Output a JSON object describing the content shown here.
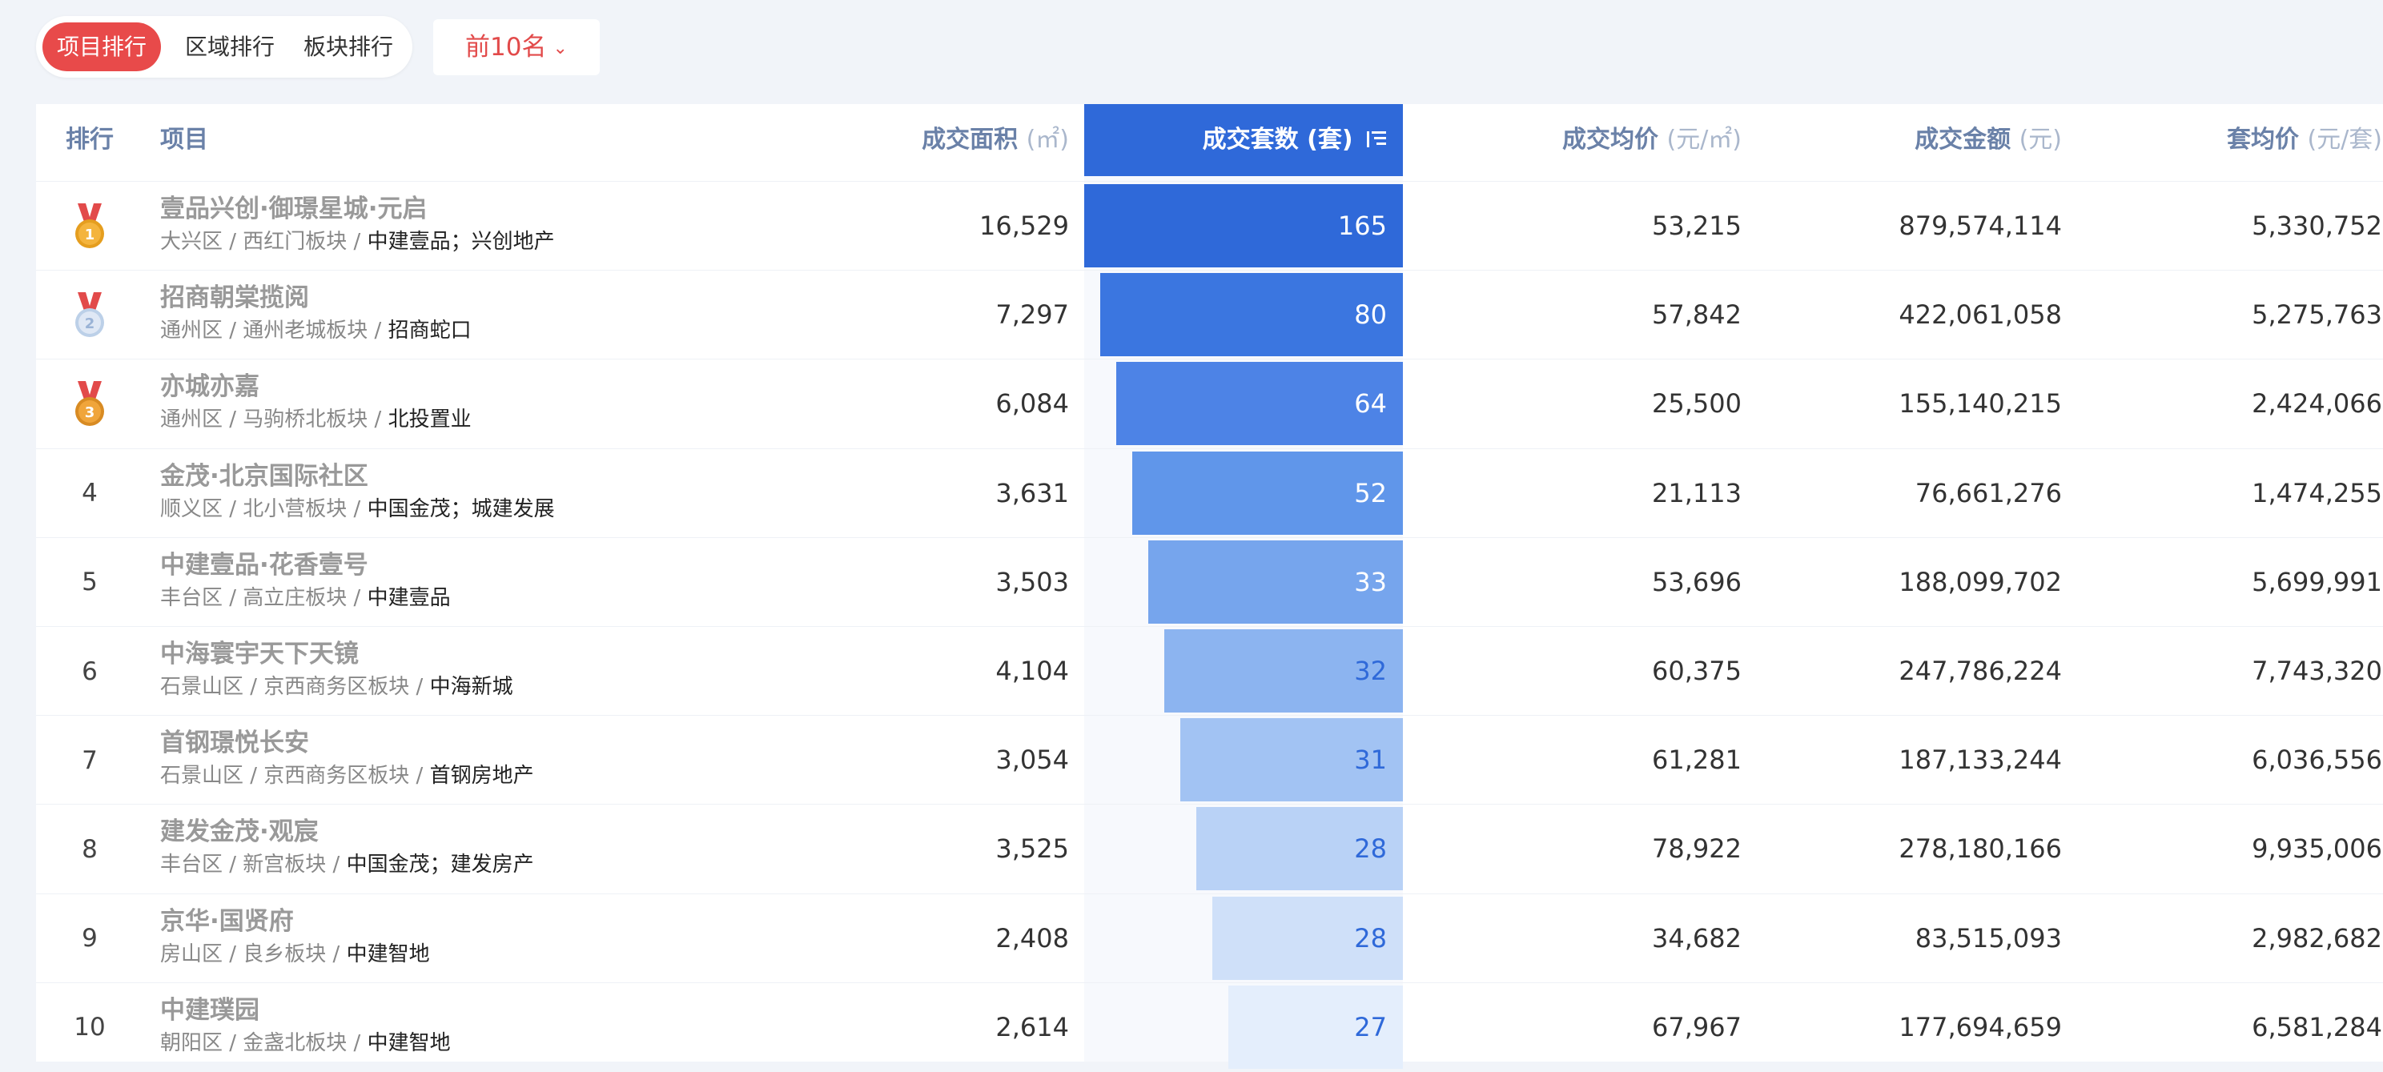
{
  "tabs": [
    {
      "label": "项目排行",
      "active": true
    },
    {
      "label": "区域排行",
      "active": false
    },
    {
      "label": "板块排行",
      "active": false
    }
  ],
  "filter": {
    "label": "前10名",
    "icon": "chevron-down-icon"
  },
  "headers": {
    "rank": "排行",
    "project": "项目",
    "area": {
      "label": "成交面积",
      "unit": "(㎡)"
    },
    "units": {
      "label": "成交套数",
      "unit": "(套)"
    },
    "avg_price": {
      "label": "成交均价",
      "unit": "(元/㎡)"
    },
    "amount": {
      "label": "成交金额",
      "unit": "(元)"
    },
    "unit_price": {
      "label": "套均价",
      "unit": "(元/套)"
    }
  },
  "sorted_column": "units",
  "colors": {
    "accent": "#2f69d9",
    "tab_active": "#e84a4a",
    "dropdown_text": "#e24a4a"
  },
  "rows": [
    {
      "rank": "1",
      "medal": "gold",
      "name": "壹品兴创·御璟星城·元启",
      "district": "大兴区 / 西红门板块 / ",
      "developer": "中建壹品；兴创地产",
      "area": "16,529",
      "units": "165",
      "avg_price": "53,215",
      "amount": "879,574,114",
      "unit_price": "5,330,752"
    },
    {
      "rank": "2",
      "medal": "silver",
      "name": "招商朝棠揽阅",
      "district": "通州区 / 通州老城板块 / ",
      "developer": "招商蛇口",
      "area": "7,297",
      "units": "80",
      "avg_price": "57,842",
      "amount": "422,061,058",
      "unit_price": "5,275,763"
    },
    {
      "rank": "3",
      "medal": "bronze",
      "name": "亦城亦嘉",
      "district": "通州区 / 马驹桥北板块 / ",
      "developer": "北投置业",
      "area": "6,084",
      "units": "64",
      "avg_price": "25,500",
      "amount": "155,140,215",
      "unit_price": "2,424,066"
    },
    {
      "rank": "4",
      "medal": "",
      "name": "金茂·北京国际社区",
      "district": "顺义区 / 北小营板块 / ",
      "developer": "中国金茂；城建发展",
      "area": "3,631",
      "units": "52",
      "avg_price": "21,113",
      "amount": "76,661,276",
      "unit_price": "1,474,255"
    },
    {
      "rank": "5",
      "medal": "",
      "name": "中建壹品·花香壹号",
      "district": "丰台区 / 高立庄板块 / ",
      "developer": "中建壹品",
      "area": "3,503",
      "units": "33",
      "avg_price": "53,696",
      "amount": "188,099,702",
      "unit_price": "5,699,991"
    },
    {
      "rank": "6",
      "medal": "",
      "name": "中海寰宇天下天镜",
      "district": "石景山区 / 京西商务区板块 / ",
      "developer": "中海新城",
      "area": "4,104",
      "units": "32",
      "avg_price": "60,375",
      "amount": "247,786,224",
      "unit_price": "7,743,320"
    },
    {
      "rank": "7",
      "medal": "",
      "name": "首钢璟悦长安",
      "district": "石景山区 / 京西商务区板块 / ",
      "developer": "首钢房地产",
      "area": "3,054",
      "units": "31",
      "avg_price": "61,281",
      "amount": "187,133,244",
      "unit_price": "6,036,556"
    },
    {
      "rank": "8",
      "medal": "",
      "name": "建发金茂·观宸",
      "district": "丰台区 / 新宫板块 / ",
      "developer": "中国金茂；建发房产",
      "area": "3,525",
      "units": "28",
      "avg_price": "78,922",
      "amount": "278,180,166",
      "unit_price": "9,935,006"
    },
    {
      "rank": "9",
      "medal": "",
      "name": "京华·国贤府",
      "district": "房山区 / 良乡板块 / ",
      "developer": "中建智地",
      "area": "2,408",
      "units": "28",
      "avg_price": "34,682",
      "amount": "83,515,093",
      "unit_price": "2,982,682"
    },
    {
      "rank": "10",
      "medal": "",
      "name": "中建璞园",
      "district": "朝阳区 / 金盏北板块 / ",
      "developer": "中建智地",
      "area": "2,614",
      "units": "27",
      "avg_price": "67,967",
      "amount": "177,694,659",
      "unit_price": "6,581,284"
    }
  ]
}
